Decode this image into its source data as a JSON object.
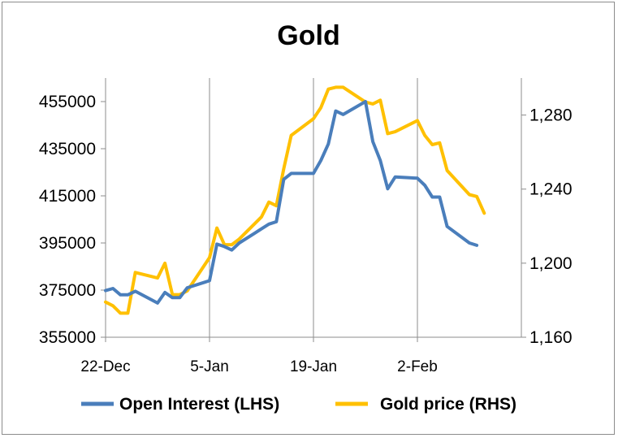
{
  "chart_data": {
    "type": "line",
    "title": "Gold",
    "x_tick_labels": [
      "22-Dec",
      "5-Jan",
      "19-Jan",
      "2-Feb"
    ],
    "x_tick_days": [
      0,
      14,
      28,
      42
    ],
    "x_range_days": [
      0,
      56
    ],
    "y_left": {
      "min": 355000,
      "max": 465000,
      "ticks": [
        355000,
        375000,
        395000,
        415000,
        435000,
        455000
      ],
      "tick_labels": [
        "355000",
        "375000",
        "395000",
        "415000",
        "435000",
        "455000"
      ]
    },
    "y_right": {
      "min": 1160,
      "max": 1300,
      "ticks": [
        1160,
        1200,
        1240,
        1280
      ],
      "tick_labels": [
        "1,160",
        "1,200",
        "1,240",
        "1,280"
      ]
    },
    "grid": "vertical",
    "legend_position": "bottom",
    "series": [
      {
        "name": "Open Interest (LHS)",
        "axis": "left",
        "color": "#4a7ebb",
        "x": [
          0,
          1,
          2,
          3,
          4,
          7,
          8,
          9,
          10,
          11,
          14,
          15,
          16,
          17,
          18,
          20,
          21,
          22,
          23,
          24,
          25,
          28,
          29,
          30,
          31,
          32,
          35,
          36,
          37,
          38,
          39,
          42,
          43,
          44,
          45,
          46,
          49,
          50
        ],
        "values": [
          374800,
          375700,
          373000,
          373000,
          374500,
          369500,
          374000,
          371800,
          371800,
          376000,
          379000,
          394500,
          393500,
          392000,
          395000,
          399000,
          401000,
          403000,
          404000,
          422000,
          424500,
          424500,
          430000,
          437000,
          451000,
          449500,
          455000,
          438000,
          430000,
          418000,
          423000,
          422500,
          419500,
          414500,
          414500,
          402000,
          395000,
          394000
        ]
      },
      {
        "name": "Gold price (RHS)",
        "axis": "right",
        "color": "#ffc000",
        "x": [
          0,
          1,
          2,
          3,
          4,
          7,
          8,
          9,
          10,
          11,
          14,
          15,
          16,
          17,
          18,
          21,
          22,
          23,
          24,
          25,
          28,
          29,
          30,
          31,
          32,
          35,
          36,
          37,
          38,
          39,
          42,
          43,
          44,
          45,
          46,
          49,
          50,
          51
        ],
        "values": [
          1179,
          1177,
          1173,
          1173,
          1195,
          1192,
          1200,
          1183,
          1183,
          1185,
          1203,
          1219,
          1210,
          1210,
          1213,
          1225,
          1233,
          1231,
          1251,
          1269,
          1278,
          1284,
          1294,
          1295,
          1295,
          1287,
          1286,
          1288,
          1270,
          1271,
          1277,
          1269,
          1264,
          1265,
          1250,
          1237,
          1236,
          1227
        ]
      }
    ]
  }
}
